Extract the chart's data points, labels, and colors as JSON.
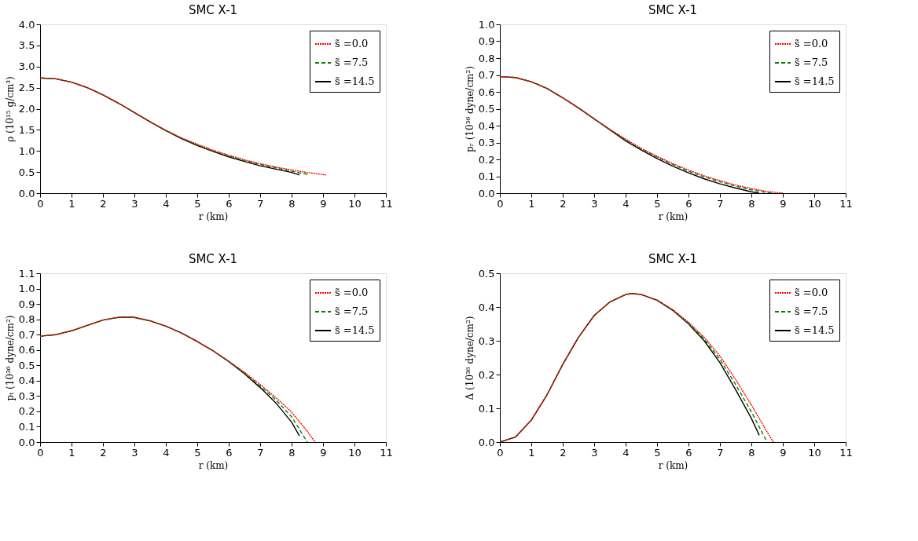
{
  "chart_data": [
    {
      "type": "line",
      "title": "SMC X-1",
      "xlabel": "r (km)",
      "ylabel": "ρ (10¹⁵ g/cm³)",
      "xlim": [
        0,
        11
      ],
      "xticks": [
        0,
        1,
        2,
        3,
        4,
        5,
        6,
        7,
        8,
        9,
        10,
        11
      ],
      "ylim": [
        0,
        4
      ],
      "yticks": [
        {
          "value": 0,
          "label": "0.0"
        },
        0.5,
        {
          "value": 1,
          "label": "1.0"
        },
        1.5,
        {
          "value": 2,
          "label": "2.0"
        },
        2.5,
        {
          "value": 3,
          "label": "3.0"
        },
        3.5,
        {
          "value": 4,
          "label": "4.0"
        }
      ],
      "grid": false,
      "legend": "top right",
      "series": [
        {
          "name": "s̃ =0.0",
          "color": "#ff0000",
          "line_style": "dotted",
          "x": [
            0,
            0.5,
            1,
            1.5,
            2,
            2.5,
            3,
            3.5,
            4,
            4.5,
            5,
            5.5,
            6,
            6.5,
            7,
            7.5,
            8,
            8.5,
            9.1
          ],
          "values": [
            2.73,
            2.71,
            2.63,
            2.5,
            2.33,
            2.13,
            1.91,
            1.69,
            1.49,
            1.31,
            1.16,
            1.02,
            0.9,
            0.79,
            0.7,
            0.62,
            0.55,
            0.49,
            0.43
          ]
        },
        {
          "name": "s̃ =7.5",
          "color": "#008000",
          "line_style": "dashed",
          "x": [
            0,
            0.5,
            1,
            1.5,
            2,
            2.5,
            3,
            3.5,
            4,
            4.5,
            5,
            5.5,
            6,
            6.5,
            7,
            7.5,
            8,
            8.55
          ],
          "values": [
            2.73,
            2.71,
            2.63,
            2.5,
            2.33,
            2.13,
            1.91,
            1.69,
            1.48,
            1.3,
            1.14,
            1.0,
            0.88,
            0.77,
            0.68,
            0.6,
            0.52,
            0.44
          ]
        },
        {
          "name": "s̃ =14.5",
          "color": "#000000",
          "line_style": "solid",
          "x": [
            0,
            0.5,
            1,
            1.5,
            2,
            2.5,
            3,
            3.5,
            4,
            4.5,
            5,
            5.5,
            6,
            6.5,
            7,
            7.5,
            8,
            8.25
          ],
          "values": [
            2.73,
            2.71,
            2.63,
            2.5,
            2.33,
            2.13,
            1.91,
            1.69,
            1.48,
            1.29,
            1.13,
            0.99,
            0.86,
            0.75,
            0.65,
            0.57,
            0.49,
            0.43
          ]
        }
      ]
    },
    {
      "type": "line",
      "title": "SMC X-1",
      "xlabel": "r (km)",
      "ylabel": "pᵣ (10³⁶ dyne/cm²)",
      "xlim": [
        0,
        11
      ],
      "xticks": [
        0,
        1,
        2,
        3,
        4,
        5,
        6,
        7,
        8,
        9,
        10,
        11
      ],
      "ylim": [
        0,
        1
      ],
      "yticks": [
        {
          "value": 0,
          "label": "0.0"
        },
        0.1,
        0.2,
        0.3,
        0.4,
        0.5,
        0.6,
        0.7,
        0.8,
        0.9,
        {
          "value": 1,
          "label": "1.0"
        }
      ],
      "grid": false,
      "legend": "top right",
      "series": [
        {
          "name": "s̃ =0.0",
          "color": "#ff0000",
          "line_style": "dotted",
          "x": [
            0,
            0.5,
            1,
            1.5,
            2,
            2.5,
            3,
            3.5,
            4,
            4.5,
            5,
            5.5,
            6,
            6.5,
            7,
            7.5,
            8,
            8.5,
            9.0
          ],
          "values": [
            0.69,
            0.685,
            0.66,
            0.62,
            0.565,
            0.505,
            0.44,
            0.378,
            0.32,
            0.265,
            0.218,
            0.175,
            0.137,
            0.103,
            0.074,
            0.048,
            0.027,
            0.01,
            0.0
          ]
        },
        {
          "name": "s̃ =7.5",
          "color": "#008000",
          "line_style": "dashed",
          "x": [
            0,
            0.5,
            1,
            1.5,
            2,
            2.5,
            3,
            3.5,
            4,
            4.5,
            5,
            5.5,
            6,
            6.5,
            7,
            7.5,
            8,
            8.5,
            8.65
          ],
          "values": [
            0.69,
            0.685,
            0.66,
            0.62,
            0.565,
            0.505,
            0.44,
            0.377,
            0.315,
            0.26,
            0.215,
            0.17,
            0.13,
            0.097,
            0.068,
            0.042,
            0.02,
            0.003,
            0.0
          ]
        },
        {
          "name": "s̃ =14.5",
          "color": "#000000",
          "line_style": "solid",
          "x": [
            0,
            0.5,
            1,
            1.5,
            2,
            2.5,
            3,
            3.5,
            4,
            4.5,
            5,
            5.5,
            6,
            6.5,
            7,
            7.5,
            8,
            8.25
          ],
          "values": [
            0.69,
            0.685,
            0.66,
            0.62,
            0.565,
            0.505,
            0.44,
            0.375,
            0.31,
            0.255,
            0.205,
            0.16,
            0.12,
            0.085,
            0.055,
            0.03,
            0.008,
            0.0
          ]
        }
      ]
    },
    {
      "type": "line",
      "title": "SMC X-1",
      "xlabel": "r (km)",
      "ylabel": "pₜ (10³⁶ dyne/cm²)",
      "xlim": [
        0,
        11
      ],
      "xticks": [
        0,
        1,
        2,
        3,
        4,
        5,
        6,
        7,
        8,
        9,
        10,
        11
      ],
      "ylim": [
        0,
        1.1
      ],
      "yticks": [
        {
          "value": 0,
          "label": "0.0"
        },
        0.1,
        0.2,
        0.3,
        0.4,
        0.5,
        0.6,
        0.7,
        0.8,
        0.9,
        {
          "value": 1,
          "label": "1.0"
        },
        1.1
      ],
      "grid": false,
      "legend": "top right",
      "series": [
        {
          "name": "s̃ =0.0",
          "color": "#ff0000",
          "line_style": "dotted",
          "x": [
            0,
            0.5,
            1,
            1.5,
            2,
            2.5,
            2.75,
            3,
            3.5,
            4,
            4.5,
            5,
            5.5,
            6,
            6.5,
            7,
            7.5,
            8,
            8.5,
            8.75
          ],
          "values": [
            0.69,
            0.7,
            0.725,
            0.76,
            0.795,
            0.813,
            0.815,
            0.812,
            0.79,
            0.755,
            0.71,
            0.655,
            0.595,
            0.527,
            0.455,
            0.375,
            0.29,
            0.195,
            0.07,
            0.0
          ]
        },
        {
          "name": "s̃ =7.5",
          "color": "#008000",
          "line_style": "dashed",
          "x": [
            0,
            0.5,
            1,
            1.5,
            2,
            2.5,
            2.75,
            3,
            3.5,
            4,
            4.5,
            5,
            5.5,
            6,
            6.5,
            7,
            7.5,
            8,
            8.5
          ],
          "values": [
            0.69,
            0.7,
            0.725,
            0.76,
            0.795,
            0.813,
            0.815,
            0.812,
            0.79,
            0.755,
            0.71,
            0.655,
            0.595,
            0.526,
            0.45,
            0.365,
            0.275,
            0.165,
            0.0
          ]
        },
        {
          "name": "s̃ =14.5",
          "color": "#000000",
          "line_style": "solid",
          "x": [
            0,
            0.5,
            1,
            1.5,
            2,
            2.5,
            2.75,
            3,
            3.5,
            4,
            4.5,
            5,
            5.5,
            6,
            6.5,
            7,
            7.5,
            8,
            8.25
          ],
          "values": [
            0.69,
            0.7,
            0.725,
            0.76,
            0.795,
            0.813,
            0.815,
            0.812,
            0.79,
            0.755,
            0.71,
            0.655,
            0.595,
            0.525,
            0.445,
            0.355,
            0.255,
            0.13,
            0.04
          ]
        }
      ]
    },
    {
      "type": "line",
      "title": "SMC X-1",
      "xlabel": "r (km)",
      "ylabel": "Δ (10³⁶ dyne/cm²)",
      "xlim": [
        0,
        11
      ],
      "xticks": [
        0,
        1,
        2,
        3,
        4,
        5,
        6,
        7,
        8,
        9,
        10,
        11
      ],
      "ylim": [
        0,
        0.5
      ],
      "yticks": [
        {
          "value": 0,
          "label": "0.0"
        },
        0.1,
        0.2,
        0.3,
        0.4,
        0.5
      ],
      "grid": false,
      "legend": "top right",
      "series": [
        {
          "name": "s̃ =0.0",
          "color": "#ff0000",
          "line_style": "dotted",
          "x": [
            0,
            0.5,
            1,
            1.5,
            2,
            2.5,
            3,
            3.5,
            4,
            4.2,
            4.5,
            5,
            5.5,
            6,
            6.5,
            7,
            7.5,
            8,
            8.5,
            8.7
          ],
          "values": [
            0.0,
            0.015,
            0.065,
            0.14,
            0.23,
            0.31,
            0.375,
            0.415,
            0.437,
            0.44,
            0.437,
            0.421,
            0.392,
            0.355,
            0.31,
            0.255,
            0.185,
            0.11,
            0.03,
            0.0
          ]
        },
        {
          "name": "s̃ =7.5",
          "color": "#008000",
          "line_style": "dashed",
          "x": [
            0,
            0.5,
            1,
            1.5,
            2,
            2.5,
            3,
            3.5,
            4,
            4.2,
            4.5,
            5,
            5.5,
            6,
            6.5,
            7,
            7.5,
            8,
            8.5
          ],
          "values": [
            0.0,
            0.015,
            0.065,
            0.14,
            0.23,
            0.31,
            0.375,
            0.415,
            0.437,
            0.44,
            0.437,
            0.42,
            0.391,
            0.352,
            0.305,
            0.245,
            0.17,
            0.09,
            0.0
          ]
        },
        {
          "name": "s̃ =14.5",
          "color": "#000000",
          "line_style": "solid",
          "x": [
            0,
            0.5,
            1,
            1.5,
            2,
            2.5,
            3,
            3.5,
            4,
            4.2,
            4.5,
            5,
            5.5,
            6,
            6.5,
            7,
            7.5,
            8,
            8.25
          ],
          "values": [
            0.0,
            0.015,
            0.065,
            0.14,
            0.23,
            0.31,
            0.375,
            0.415,
            0.437,
            0.44,
            0.437,
            0.42,
            0.39,
            0.35,
            0.3,
            0.235,
            0.155,
            0.07,
            0.02
          ]
        }
      ]
    }
  ]
}
